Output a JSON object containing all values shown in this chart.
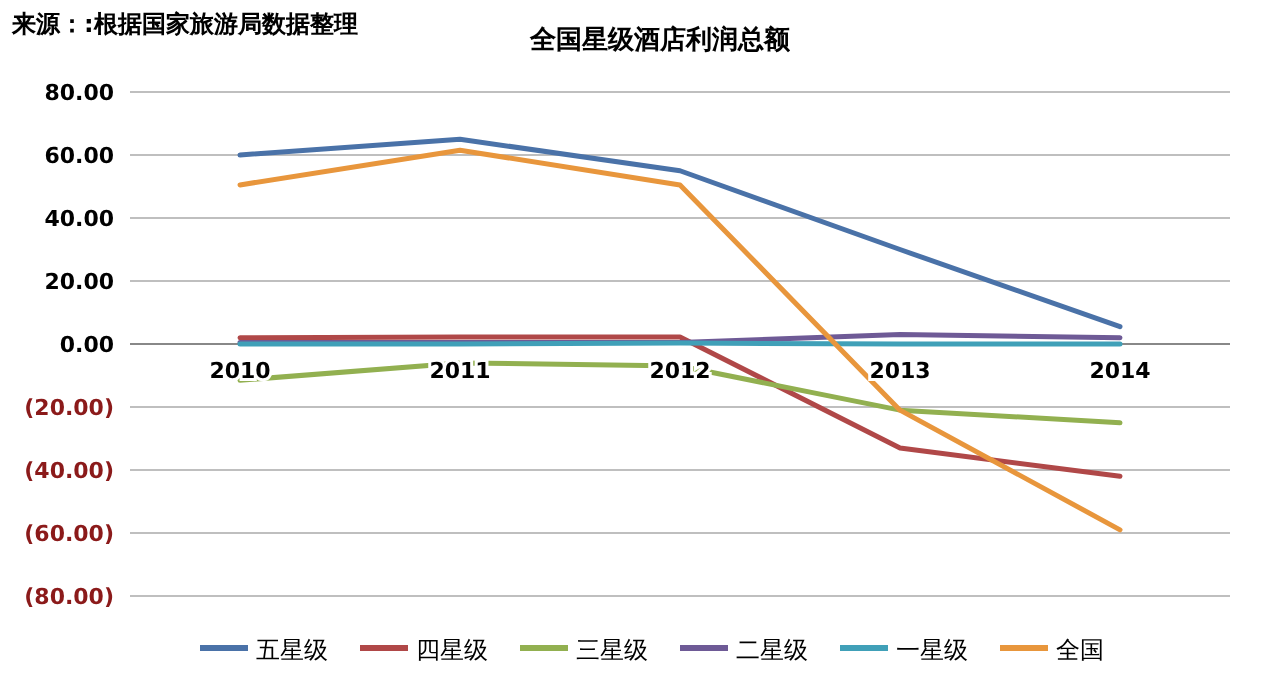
{
  "chart_data": {
    "type": "line",
    "title": "全国星级酒店利润总额",
    "annotations": [
      "来源：:根据国家旅游局数据整理"
    ],
    "categories": [
      "2010",
      "2011",
      "2012",
      "2013",
      "2014"
    ],
    "series": [
      {
        "name": "五星级",
        "color": "#4a72a8",
        "values": [
          60,
          65,
          55,
          30,
          5.5
        ]
      },
      {
        "name": "四星级",
        "color": "#b04848",
        "values": [
          2,
          2.2,
          2.2,
          -33,
          -42
        ]
      },
      {
        "name": "三星级",
        "color": "#92b050",
        "values": [
          -11.5,
          -6,
          -7,
          -21,
          -25
        ]
      },
      {
        "name": "二星级",
        "color": "#6e5a96",
        "values": [
          0.5,
          0.5,
          0.5,
          3,
          2
        ]
      },
      {
        "name": "一星级",
        "color": "#40a0b8",
        "values": [
          0,
          0,
          0.3,
          0,
          0
        ]
      },
      {
        "name": "全国",
        "color": "#e8963c",
        "values": [
          50.5,
          61.5,
          50.5,
          -21,
          -59
        ]
      }
    ],
    "ylim": [
      -80,
      80
    ],
    "yticks": [
      {
        "value": -80,
        "label": "(80.00)"
      },
      {
        "value": -60,
        "label": "(60.00)"
      },
      {
        "value": -40,
        "label": "(40.00)"
      },
      {
        "value": -20,
        "label": "(20.00)"
      },
      {
        "value": 0,
        "label": "0.00"
      },
      {
        "value": 20,
        "label": "20.00"
      },
      {
        "value": 40,
        "label": "40.00"
      },
      {
        "value": 60,
        "label": "60.00"
      },
      {
        "value": 80,
        "label": "80.00"
      }
    ],
    "grid": "y",
    "legend": "bottom",
    "marker": "none",
    "line_style": "solid"
  }
}
